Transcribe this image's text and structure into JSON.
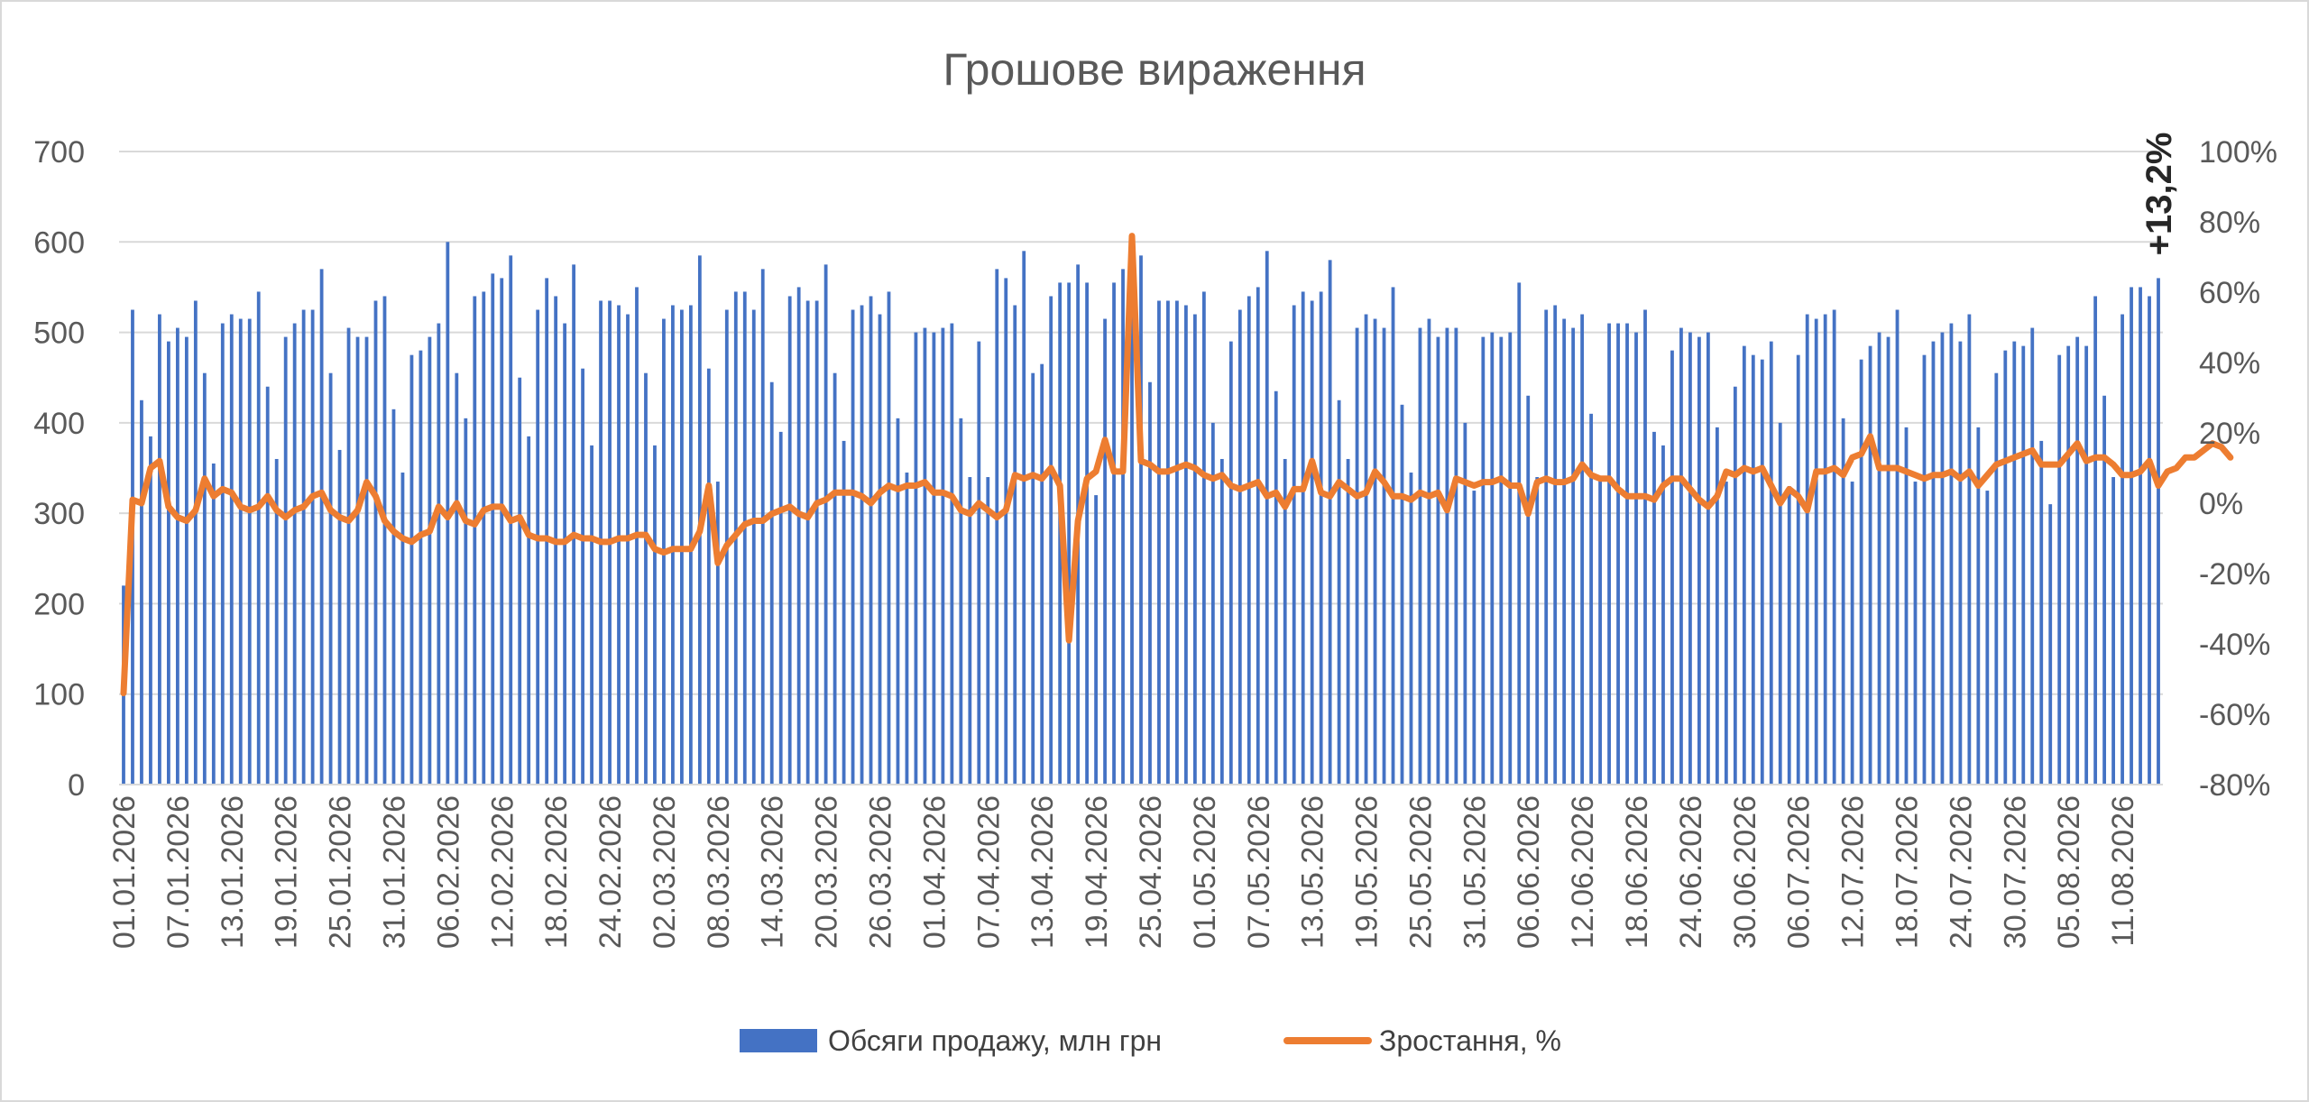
{
  "chart_data": {
    "type": "bar+line",
    "title": "Грошове вираження",
    "annotation": "+13,2%",
    "colors": {
      "bars": "#4472c4",
      "line": "#ed7d31",
      "grid": "#d9d9d9",
      "text": "#595959"
    },
    "y_left": {
      "min": 0,
      "max": 700,
      "ticks": [
        "0",
        "100",
        "200",
        "300",
        "400",
        "500",
        "600",
        "700"
      ]
    },
    "y_right": {
      "min": -80,
      "max": 100,
      "ticks": [
        "-80%",
        "-60%",
        "-40%",
        "-20%",
        "0%",
        "20%",
        "40%",
        "60%",
        "80%",
        "100%"
      ]
    },
    "x_start_date": "01.01.2026",
    "x_labels": [
      "01.01.2026",
      "07.01.2026",
      "13.01.2026",
      "19.01.2026",
      "25.01.2026",
      "31.01.2026",
      "06.02.2026",
      "12.02.2026",
      "18.02.2026",
      "24.02.2026",
      "02.03.2026",
      "08.03.2026",
      "14.03.2026",
      "20.03.2026",
      "26.03.2026",
      "01.04.2026",
      "07.04.2026",
      "13.04.2026",
      "19.04.2026",
      "25.04.2026",
      "01.05.2026",
      "07.05.2026",
      "13.05.2026",
      "19.05.2026",
      "25.05.2026",
      "31.05.2026",
      "06.06.2026",
      "12.06.2026",
      "18.06.2026",
      "24.06.2026",
      "30.06.2026",
      "06.07.2026",
      "12.07.2026",
      "18.07.2026",
      "24.07.2026",
      "30.07.2026",
      "05.08.2026",
      "11.08.2026"
    ],
    "legend": [
      {
        "key": "bars",
        "label": "Обсяги продажу, млн грн"
      },
      {
        "key": "line",
        "label": "Зростання, %"
      }
    ],
    "series": [
      {
        "name": "Обсяги продажу, млн грн",
        "axis": "left",
        "values": [
          220,
          525,
          425,
          385,
          520,
          490,
          505,
          495,
          535,
          455,
          355,
          510,
          520,
          515,
          515,
          545,
          440,
          360,
          495,
          510,
          525,
          525,
          570,
          455,
          370,
          505,
          495,
          495,
          535,
          540,
          415,
          345,
          475,
          480,
          495,
          510,
          600,
          455,
          405,
          540,
          545,
          565,
          560,
          585,
          450,
          385,
          525,
          560,
          540,
          510,
          575,
          460,
          375,
          535,
          535,
          530,
          520,
          550,
          455,
          375,
          515,
          530,
          525,
          530,
          585,
          460,
          335,
          525,
          545,
          545,
          525,
          570,
          445,
          390,
          540,
          550,
          535,
          535,
          575,
          455,
          380,
          525,
          530,
          540,
          520,
          545,
          405,
          345,
          500,
          505,
          500,
          505,
          510,
          405,
          340,
          490,
          340,
          570,
          560,
          530,
          590,
          455,
          465,
          540,
          555,
          555,
          575,
          555,
          320,
          515,
          555,
          570,
          560,
          585,
          445,
          535,
          535,
          535,
          530,
          520,
          545,
          400,
          360,
          490,
          525,
          540,
          550,
          590,
          435,
          360,
          530,
          545,
          535,
          545,
          580,
          425,
          360,
          505,
          520,
          515,
          505,
          550,
          420,
          345,
          505,
          515,
          495,
          505,
          505,
          400,
          325,
          495,
          500,
          495,
          500,
          555,
          430,
          340,
          525,
          530,
          515,
          505,
          520,
          410,
          340,
          510,
          510,
          510,
          500,
          525,
          390,
          375,
          480,
          505,
          500,
          495,
          500,
          395,
          335,
          440,
          485,
          475,
          470,
          490,
          400,
          330,
          475,
          520,
          515,
          520,
          525,
          405,
          335,
          470,
          485,
          500,
          495,
          525,
          395,
          335,
          475,
          490,
          500,
          510,
          490,
          520,
          395,
          325,
          455,
          480,
          490,
          485,
          505,
          380,
          310,
          475,
          485,
          495,
          485,
          540,
          430,
          340,
          520,
          550,
          550,
          540,
          560
        ]
      },
      {
        "name": "Зростання, %",
        "axis": "right",
        "values": [
          -54,
          1,
          0,
          10,
          12,
          -1,
          -4,
          -5,
          -2,
          7,
          2,
          4,
          3,
          -1,
          -2,
          -1,
          2,
          -2,
          -4,
          -2,
          -1,
          2,
          3,
          -2,
          -4,
          -5,
          -2,
          6,
          2,
          -5,
          -8,
          -10,
          -11,
          -9,
          -8,
          -1,
          -4,
          0,
          -5,
          -6,
          -2,
          -1,
          -1,
          -5,
          -4,
          -9,
          -10,
          -10,
          -11,
          -11,
          -9,
          -10,
          -10,
          -11,
          -11,
          -10,
          -10,
          -9,
          -9,
          -13,
          -14,
          -13,
          -13,
          -13,
          -8,
          5,
          -17,
          -12,
          -9,
          -6,
          -5,
          -5,
          -3,
          -2,
          -1,
          -3,
          -4,
          0,
          1,
          3,
          3,
          3,
          2,
          0,
          3,
          5,
          4,
          5,
          5,
          6,
          3,
          3,
          2,
          -2,
          -3,
          0,
          -2,
          -4,
          -2,
          8,
          7,
          8,
          7,
          10,
          5,
          -39,
          -5,
          7,
          9,
          18,
          9,
          9,
          76,
          12,
          11,
          9,
          9,
          10,
          11,
          10,
          8,
          7,
          8,
          5,
          4,
          5,
          6,
          2,
          3,
          -1,
          4,
          4,
          12,
          3,
          2,
          6,
          4,
          2,
          3,
          9,
          6,
          2,
          2,
          1,
          3,
          2,
          3,
          -2,
          7,
          6,
          5,
          6,
          6,
          7,
          5,
          5,
          -3,
          6,
          7,
          6,
          6,
          7,
          11,
          8,
          7,
          7,
          4,
          2,
          2,
          2,
          1,
          5,
          7,
          7,
          4,
          1,
          -1,
          2,
          9,
          8,
          10,
          9,
          10,
          5,
          0,
          4,
          2,
          -2,
          9,
          9,
          10,
          8,
          13,
          14,
          19,
          10,
          10,
          10,
          9,
          8,
          7,
          8,
          8,
          9,
          7,
          9,
          5,
          8,
          11,
          12,
          13,
          14,
          15,
          11,
          11,
          11,
          14,
          17,
          12,
          13,
          13,
          11,
          8,
          8,
          9,
          12,
          5,
          9,
          10,
          13,
          13,
          15,
          17,
          16,
          13
        ]
      }
    ]
  }
}
